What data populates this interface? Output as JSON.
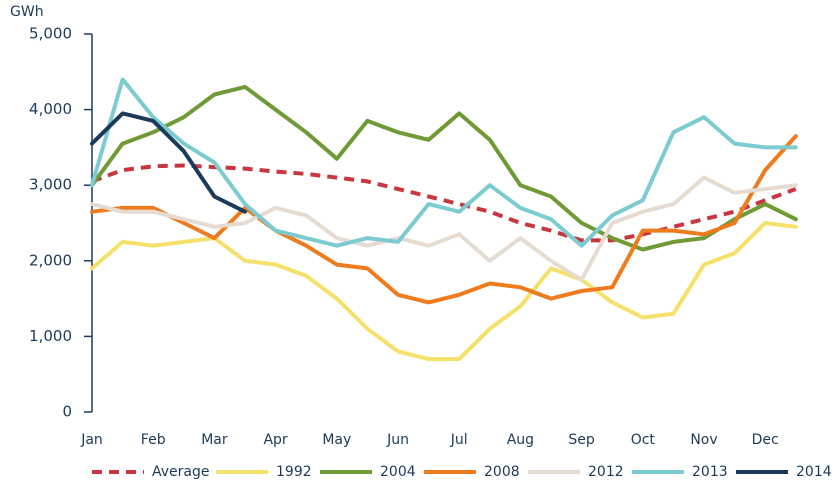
{
  "chart_data": {
    "type": "line",
    "y_label": "GWh",
    "categories": [
      "Jan",
      null,
      "Feb",
      null,
      "Mar",
      null,
      "Apr",
      null,
      "May",
      null,
      "Jun",
      null,
      "Jul",
      null,
      "Aug",
      null,
      "Sep",
      null,
      "Oct",
      null,
      "Nov",
      null,
      "Dec",
      null
    ],
    "ylim": [
      0,
      5000
    ],
    "yticks": [
      0,
      {
        "value": 1000,
        "label": "1,000"
      },
      {
        "value": 2000,
        "label": "2,000"
      },
      {
        "value": 3000,
        "label": "3,000"
      },
      {
        "value": 4000,
        "label": "4,000"
      },
      {
        "value": 5000,
        "label": "5,000"
      }
    ],
    "legend": "bottom",
    "series": [
      {
        "name": "Average",
        "color": "#c8363f",
        "line_style": "dashed",
        "values": [
          3050,
          3200,
          3250,
          3260,
          3240,
          3220,
          3180,
          3150,
          3100,
          3050,
          2950,
          2850,
          2750,
          2650,
          2500,
          2400,
          2270,
          2270,
          2350,
          2450,
          2550,
          2650,
          2800,
          2950
        ]
      },
      {
        "name": "1992",
        "color": "#f5e06a",
        "values": [
          1900,
          2250,
          2200,
          2250,
          2300,
          2000,
          1950,
          1800,
          1500,
          1100,
          800,
          700,
          700,
          1100,
          1400,
          1900,
          1750,
          1450,
          1250,
          1300,
          1950,
          2100,
          2500,
          2450
        ]
      },
      {
        "name": "2004",
        "color": "#6f9a35",
        "values": [
          3000,
          3550,
          3700,
          3900,
          4200,
          4300,
          4000,
          3700,
          3350,
          3850,
          3700,
          3600,
          3950,
          3600,
          3000,
          2850,
          2500,
          2300,
          2150,
          2250,
          2300,
          2550,
          2750,
          2550
        ]
      },
      {
        "name": "2008",
        "color": "#ee7b1e",
        "values": [
          2650,
          2700,
          2700,
          2500,
          2300,
          2700,
          2400,
          2200,
          1950,
          1900,
          1550,
          1450,
          1550,
          1700,
          1650,
          1500,
          1600,
          1650,
          2400,
          2400,
          2350,
          2500,
          3200,
          3650
        ]
      },
      {
        "name": "2012",
        "color": "#e6dbd0",
        "values": [
          2750,
          2650,
          2650,
          2550,
          2450,
          2500,
          2700,
          2600,
          2300,
          2200,
          2300,
          2200,
          2350,
          2000,
          2300,
          2000,
          1750,
          2500,
          2650,
          2750,
          3100,
          2900,
          2950,
          3000
        ]
      },
      {
        "name": "2013",
        "color": "#7ccbd0",
        "values": [
          3000,
          4400,
          3900,
          3550,
          3300,
          2750,
          2400,
          2300,
          2200,
          2300,
          2250,
          2750,
          2650,
          3000,
          2700,
          2550,
          2200,
          2600,
          2800,
          3700,
          3900,
          3550,
          3500,
          3500
        ]
      },
      {
        "name": "2014",
        "color": "#1b3a5c",
        "values": [
          3550,
          3950,
          3850,
          3450,
          2850,
          2650,
          null,
          null,
          null,
          null,
          null,
          null,
          null,
          null,
          null,
          null,
          null,
          null,
          null,
          null,
          null,
          null,
          null,
          null
        ]
      }
    ]
  }
}
